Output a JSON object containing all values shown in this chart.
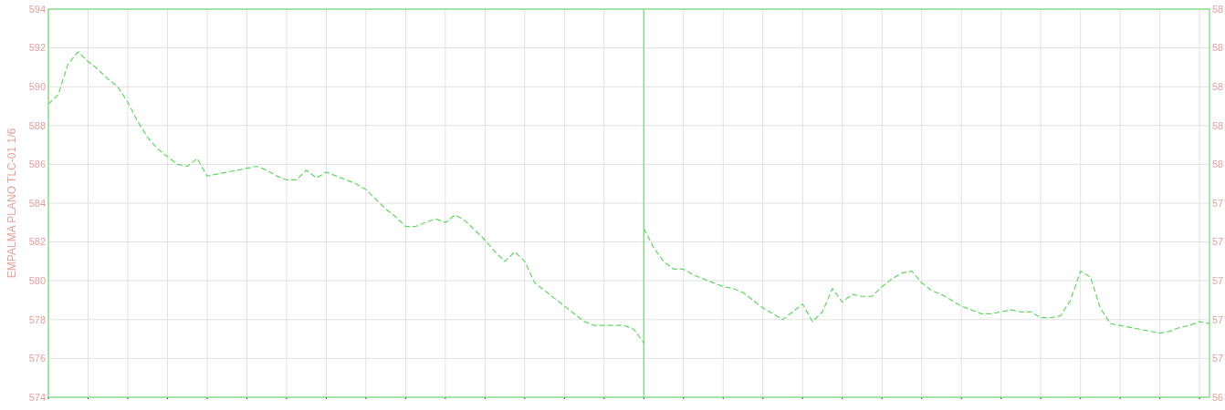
{
  "chart_data": {
    "type": "line",
    "ylabel": "EMPALMA PLANO TLC-01 1/6",
    "categories": [
      null,
      null,
      null,
      null,
      null,
      null,
      null,
      null,
      null,
      null,
      null,
      null,
      null,
      null,
      null,
      null,
      null,
      null,
      null,
      null,
      null,
      null,
      null,
      null,
      null,
      null,
      null,
      null,
      null,
      null,
      null,
      null,
      null,
      null,
      null,
      null,
      null,
      null,
      null,
      null,
      null,
      null,
      null,
      null,
      null,
      null,
      null,
      null,
      null,
      null,
      null,
      null,
      null,
      null,
      null,
      null,
      null,
      null,
      null,
      null,
      null,
      null,
      null,
      null,
      null,
      null,
      null,
      null,
      null,
      null,
      null,
      null,
      null,
      null,
      null,
      null,
      null,
      null,
      null,
      null,
      null,
      null,
      null,
      null,
      null,
      null,
      null,
      null,
      null,
      null,
      null,
      null,
      null,
      null,
      null,
      null,
      null,
      null,
      null,
      null,
      null,
      null,
      null,
      null,
      null,
      null,
      null,
      null,
      null,
      null,
      null,
      null,
      null,
      null,
      null,
      null,
      null,
      null
    ],
    "series": [
      {
        "color": "#5fd85f",
        "values": [
          589.1,
          589.6,
          591.2,
          591.8,
          591.3,
          590.9,
          590.4,
          590.0,
          589.2,
          588.2,
          587.4,
          586.8,
          586.4,
          586.0,
          585.9,
          586.3,
          585.4,
          585.5,
          585.6,
          585.7,
          585.8,
          585.9,
          585.7,
          585.4,
          585.2,
          585.2,
          585.7,
          585.3,
          585.6,
          585.4,
          585.2,
          585.0,
          584.7,
          584.2,
          583.7,
          583.3,
          582.8,
          582.8,
          583.0,
          583.2,
          583.0,
          583.4,
          583.1,
          582.6,
          582.1,
          581.5,
          581.0,
          581.5,
          581.0,
          579.9,
          579.5,
          579.1,
          578.7,
          578.3,
          577.9,
          577.7,
          577.7,
          577.7,
          577.7,
          577.5,
          576.8,
          null,
          null,
          null,
          null,
          null,
          null,
          null,
          null,
          null,
          null,
          null,
          null,
          null,
          null,
          null,
          null,
          null,
          null,
          null,
          null,
          null,
          null,
          null,
          null,
          null,
          null,
          null,
          null,
          null,
          null,
          null,
          null,
          null,
          null,
          null,
          null,
          null,
          null,
          null,
          null,
          null,
          null,
          null,
          null,
          null,
          null,
          null,
          null,
          null,
          null,
          null,
          null,
          null,
          null,
          null,
          null,
          null
        ]
      },
      {
        "color": "#5fd85f",
        "values": [
          null,
          null,
          null,
          null,
          null,
          null,
          null,
          null,
          null,
          null,
          null,
          null,
          null,
          null,
          null,
          null,
          null,
          null,
          null,
          null,
          null,
          null,
          null,
          null,
          null,
          null,
          null,
          null,
          null,
          null,
          null,
          null,
          null,
          null,
          null,
          null,
          null,
          null,
          null,
          null,
          null,
          null,
          null,
          null,
          null,
          null,
          null,
          null,
          null,
          null,
          null,
          null,
          null,
          null,
          null,
          null,
          null,
          null,
          null,
          null,
          582.7,
          581.7,
          581.0,
          580.6,
          580.6,
          580.3,
          580.1,
          579.9,
          579.7,
          579.6,
          579.4,
          579.0,
          578.6,
          578.3,
          578.0,
          578.4,
          578.8,
          577.9,
          578.4,
          579.6,
          578.9,
          579.3,
          579.2,
          579.2,
          579.7,
          580.1,
          580.4,
          580.5,
          579.9,
          579.5,
          579.3,
          579.0,
          578.7,
          578.5,
          578.3,
          578.3,
          578.4,
          578.5,
          578.4,
          578.4,
          578.1,
          578.1,
          578.2,
          579.0,
          580.5,
          580.2,
          578.6,
          577.8,
          577.7,
          577.6,
          577.5,
          577.4,
          577.3,
          577.4,
          577.6,
          577.7,
          577.9,
          577.8
        ]
      }
    ],
    "ylim": [
      574,
      594
    ],
    "yticks": [
      574,
      576,
      578,
      580,
      582,
      584,
      586,
      588,
      590,
      592,
      594
    ],
    "grid": true,
    "line_style": "dashed",
    "marker": "none",
    "annotations": [
      "58",
      "58",
      "58",
      "58",
      "58",
      "57",
      "57",
      "57",
      "57",
      "57",
      "56"
    ]
  }
}
